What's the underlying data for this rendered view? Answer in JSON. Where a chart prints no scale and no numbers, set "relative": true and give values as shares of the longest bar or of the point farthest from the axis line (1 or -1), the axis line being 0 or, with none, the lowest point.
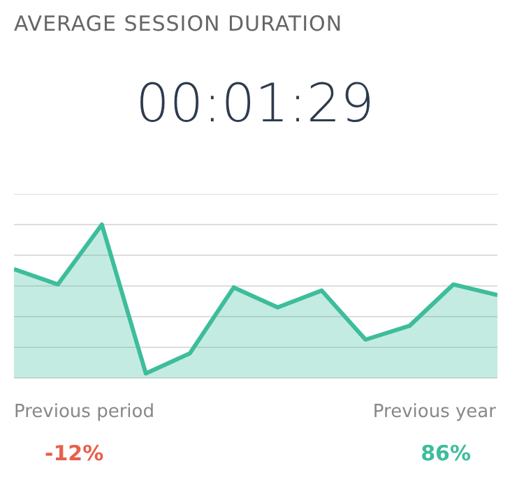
{
  "chart_data": {
    "type": "area",
    "title": "AVERAGE SESSION DURATION",
    "subtitle": "00:01:29",
    "relative": true,
    "categories": [
      null,
      null,
      null,
      null,
      null,
      null,
      null,
      null,
      null,
      null,
      null,
      null
    ],
    "series": [
      {
        "color": "#3dbd9b",
        "values": [
          0.71,
          0.61,
          1,
          0.03,
          0.16,
          0.59,
          0.46,
          0.57,
          0.25,
          0.34,
          0.61,
          0.54
        ]
      }
    ],
    "grid": "y",
    "legend": false,
    "marker": "none",
    "annotations": [
      "Previous period",
      "-12%",
      "Previous year",
      "86%"
    ]
  }
}
